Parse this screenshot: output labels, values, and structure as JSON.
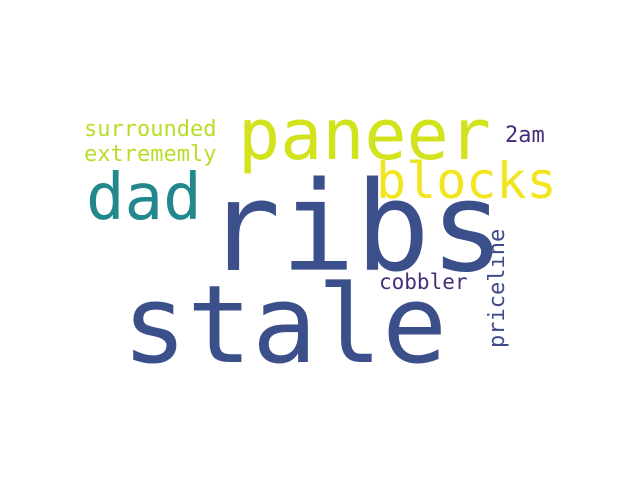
{
  "words": [
    {
      "text": "stale",
      "color": "#3b4f8a"
    },
    {
      "text": "ribs",
      "color": "#3b4f8a"
    },
    {
      "text": "paneer",
      "color": "#d2e21b"
    },
    {
      "text": "dad",
      "color": "#23888e"
    },
    {
      "text": "blocks",
      "color": "#f2e51d"
    },
    {
      "text": "surrounded",
      "color": "#b8de29"
    },
    {
      "text": "extrememly",
      "color": "#b8de29"
    },
    {
      "text": "2am",
      "color": "#472c7a"
    },
    {
      "text": "cobbler",
      "color": "#472c7a"
    },
    {
      "text": "priceline",
      "color": "#3e4a89"
    }
  ]
}
